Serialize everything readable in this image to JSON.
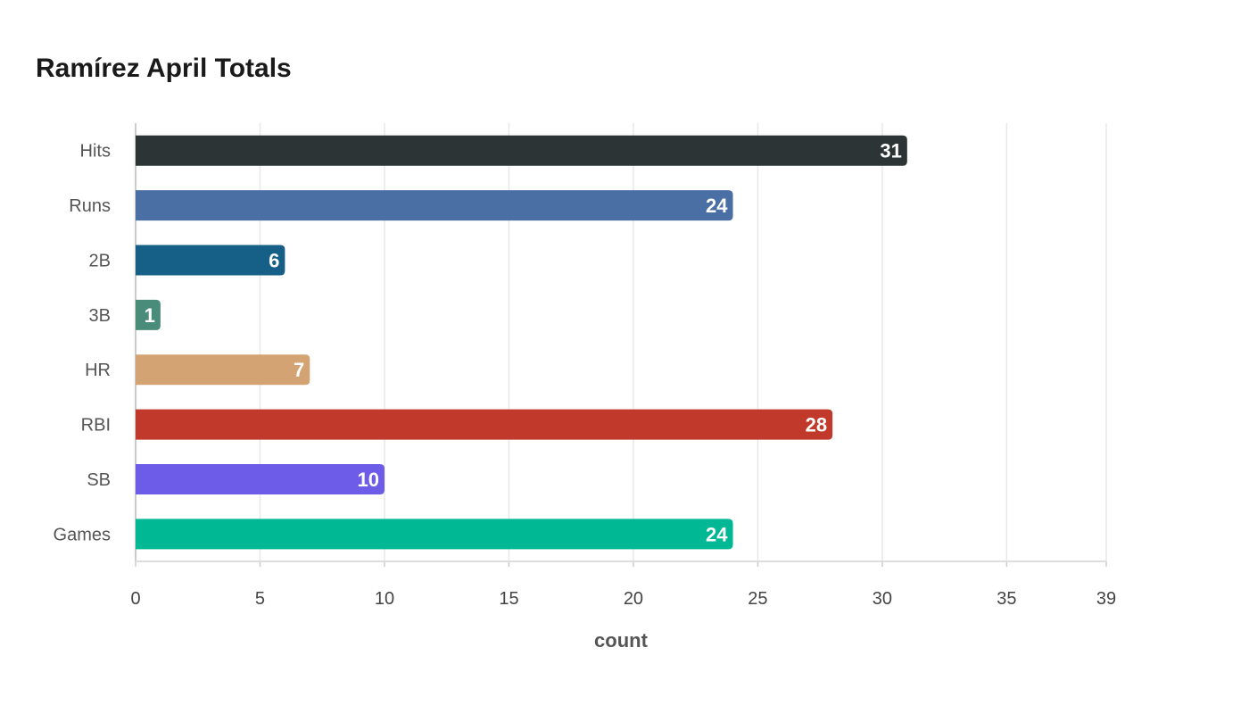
{
  "chart_data": {
    "type": "bar",
    "orientation": "horizontal",
    "title": "Ramírez April Totals",
    "xlabel": "count",
    "ylabel": "",
    "categories": [
      "Hits",
      "Runs",
      "2B",
      "3B",
      "HR",
      "RBI",
      "SB",
      "Games"
    ],
    "values": [
      31,
      24,
      6,
      1,
      7,
      28,
      10,
      24
    ],
    "colors": [
      "#2d3436",
      "#4a6fa5",
      "#166088",
      "#4a8c7a",
      "#d4a373",
      "#c0392b",
      "#6c5ce7",
      "#00b894"
    ],
    "xlim": [
      0,
      39
    ],
    "xticks": [
      "0",
      "5",
      "10",
      "15",
      "20",
      "25",
      "30",
      "35",
      "39"
    ],
    "grid": true,
    "legend": "none"
  }
}
